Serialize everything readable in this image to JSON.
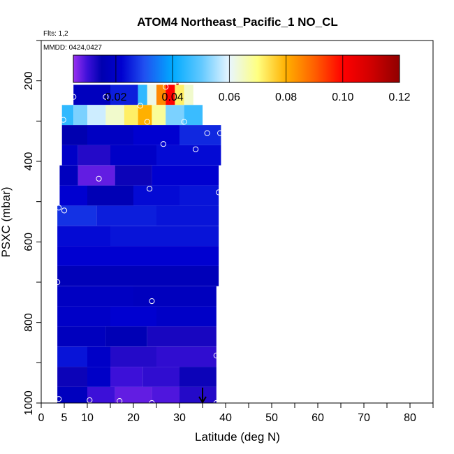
{
  "chart_data": {
    "type": "heatmap",
    "title": "ATOM4 Northeast_Pacific_1 NO_CL",
    "annotations": [
      "Flts: 1,2",
      "MMDD: 0424,0427"
    ],
    "xlabel": "Latitude (deg N)",
    "ylabel": "PSXC (mbar)",
    "xlim": [
      0,
      85
    ],
    "ylim": [
      1000,
      100
    ],
    "x_ticks": [
      0,
      5,
      10,
      20,
      30,
      40,
      50,
      60,
      70,
      80
    ],
    "y_ticks": [
      200,
      400,
      600,
      800,
      1000
    ],
    "colorbar": {
      "min": 0.005,
      "max": 0.12,
      "ticks": [
        0.02,
        0.04,
        0.06,
        0.08,
        0.1,
        0.12
      ],
      "tick_labels": [
        "0.02",
        "0.04",
        "0.06",
        "0.08",
        "0.10",
        "0.12"
      ],
      "stops": [
        [
          0.005,
          "#9a30f0"
        ],
        [
          0.01,
          "#3c10d8"
        ],
        [
          0.015,
          "#0000b0"
        ],
        [
          0.022,
          "#0000d0"
        ],
        [
          0.03,
          "#2050f0"
        ],
        [
          0.04,
          "#00aaff"
        ],
        [
          0.05,
          "#60c8ff"
        ],
        [
          0.06,
          "#e8f6ff"
        ],
        [
          0.07,
          "#ffff80"
        ],
        [
          0.08,
          "#ffb000"
        ],
        [
          0.09,
          "#ff6000"
        ],
        [
          0.1,
          "#ff0000"
        ],
        [
          0.11,
          "#d00000"
        ],
        [
          0.12,
          "#900000"
        ]
      ]
    },
    "layers": [
      {
        "p_top": 160,
        "p_bot": 220,
        "cells": [
          [
            29.3,
            29.8,
            0.11
          ]
        ]
      },
      {
        "p_top": 210,
        "p_bot": 260,
        "cells": [
          [
            7,
            15,
            0.018
          ],
          [
            15,
            21,
            0.025
          ],
          [
            21,
            23,
            0.045
          ],
          [
            23,
            25,
            0.062
          ],
          [
            25,
            27,
            0.085
          ],
          [
            27,
            29,
            0.1
          ],
          [
            29,
            31,
            0.072
          ],
          [
            31,
            33,
            0.064
          ]
        ]
      },
      {
        "p_top": 260,
        "p_bot": 310,
        "cells": [
          [
            4.5,
            7,
            0.045
          ],
          [
            7,
            10,
            0.052
          ],
          [
            10,
            14,
            0.058
          ],
          [
            14,
            18,
            0.064
          ],
          [
            18,
            21,
            0.072
          ],
          [
            21,
            24,
            0.08
          ],
          [
            24,
            27,
            0.068
          ],
          [
            27,
            31,
            0.052
          ],
          [
            31,
            35,
            0.046
          ]
        ]
      },
      {
        "p_top": 310,
        "p_bot": 360,
        "cells": [
          [
            4.5,
            10,
            0.015
          ],
          [
            10,
            20,
            0.019
          ],
          [
            20,
            30,
            0.022
          ],
          [
            30,
            39,
            0.026
          ]
        ]
      },
      {
        "p_top": 360,
        "p_bot": 410,
        "cells": [
          [
            4.5,
            8,
            0.02
          ],
          [
            8,
            15,
            0.012
          ],
          [
            15,
            25,
            0.02
          ],
          [
            25,
            39,
            0.023
          ]
        ]
      },
      {
        "p_top": 410,
        "p_bot": 460,
        "cells": [
          [
            4,
            8,
            0.018
          ],
          [
            8,
            16,
            0.008
          ],
          [
            16,
            24,
            0.014
          ],
          [
            24,
            38.5,
            0.022
          ]
        ]
      },
      {
        "p_top": 460,
        "p_bot": 510,
        "cells": [
          [
            4,
            10,
            0.022
          ],
          [
            10,
            20,
            0.016
          ],
          [
            20,
            30,
            0.023
          ],
          [
            30,
            38.5,
            0.024
          ]
        ]
      },
      {
        "p_top": 510,
        "p_bot": 560,
        "cells": [
          [
            3.5,
            12,
            0.027
          ],
          [
            12,
            25,
            0.025
          ],
          [
            25,
            38.5,
            0.024
          ]
        ]
      },
      {
        "p_top": 560,
        "p_bot": 610,
        "cells": [
          [
            3.5,
            15,
            0.023
          ],
          [
            15,
            38.5,
            0.024
          ]
        ]
      },
      {
        "p_top": 610,
        "p_bot": 660,
        "cells": [
          [
            3.5,
            10,
            0.022
          ],
          [
            10,
            38.5,
            0.022
          ]
        ]
      },
      {
        "p_top": 660,
        "p_bot": 710,
        "cells": [
          [
            3.5,
            38.5,
            0.017
          ]
        ]
      },
      {
        "p_top": 710,
        "p_bot": 760,
        "cells": [
          [
            3.5,
            20,
            0.019
          ],
          [
            20,
            38,
            0.018
          ]
        ]
      },
      {
        "p_top": 760,
        "p_bot": 810,
        "cells": [
          [
            3.5,
            15,
            0.02
          ],
          [
            15,
            25,
            0.022
          ],
          [
            25,
            38,
            0.02
          ]
        ]
      },
      {
        "p_top": 810,
        "p_bot": 860,
        "cells": [
          [
            3.5,
            14,
            0.018
          ],
          [
            14,
            23,
            0.016
          ],
          [
            23,
            38,
            0.013
          ]
        ]
      },
      {
        "p_top": 860,
        "p_bot": 910,
        "cells": [
          [
            3.5,
            10,
            0.024
          ],
          [
            10,
            15,
            0.02
          ],
          [
            15,
            25,
            0.012
          ],
          [
            25,
            38,
            0.011
          ]
        ]
      },
      {
        "p_top": 910,
        "p_bot": 960,
        "cells": [
          [
            3.5,
            10,
            0.014
          ],
          [
            10,
            15,
            0.02
          ],
          [
            15,
            22,
            0.01
          ],
          [
            22,
            30,
            0.011
          ],
          [
            30,
            38,
            0.014
          ]
        ]
      },
      {
        "p_top": 960,
        "p_bot": 1000,
        "cells": [
          [
            3.5,
            10,
            0.018
          ],
          [
            10,
            16,
            0.01
          ],
          [
            16,
            24,
            0.008
          ],
          [
            24,
            30,
            0.009
          ],
          [
            30,
            38,
            0.012
          ]
        ]
      }
    ],
    "sample_points": [
      [
        29.5,
        200
      ],
      [
        27,
        215
      ],
      [
        7,
        240
      ],
      [
        14,
        240
      ],
      [
        21.5,
        262
      ],
      [
        4.8,
        297
      ],
      [
        23,
        302
      ],
      [
        31,
        302
      ],
      [
        36,
        330
      ],
      [
        38.8,
        330
      ],
      [
        26.5,
        357
      ],
      [
        33.5,
        370
      ],
      [
        12.5,
        443
      ],
      [
        23.5,
        468
      ],
      [
        38.5,
        477
      ],
      [
        3.8,
        515
      ],
      [
        5,
        522
      ],
      [
        3.5,
        700
      ],
      [
        24,
        747
      ],
      [
        38,
        882
      ],
      [
        3.8,
        990
      ],
      [
        10.5,
        993
      ],
      [
        17,
        995
      ],
      [
        24,
        1000
      ],
      [
        38,
        1000
      ]
    ],
    "marker_arrow": {
      "x": 35,
      "p": 1000
    }
  }
}
